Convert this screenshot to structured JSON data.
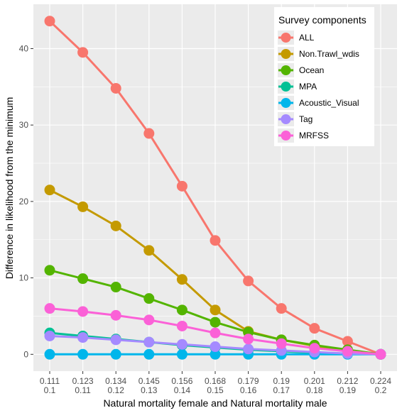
{
  "chart_data": {
    "type": "line",
    "title": "",
    "xlabel": "Natural mortality female and Natural mortality male",
    "ylabel": "Difference in likelihood from the minimum",
    "categories": [
      [
        "0.111",
        "0.1"
      ],
      [
        "0.123",
        "0.11"
      ],
      [
        "0.134",
        "0.12"
      ],
      [
        "0.145",
        "0.13"
      ],
      [
        "0.156",
        "0.14"
      ],
      [
        "0.168",
        "0.15"
      ],
      [
        "0.179",
        "0.16"
      ],
      [
        "0.19",
        "0.17"
      ],
      [
        "0.201",
        "0.18"
      ],
      [
        "0.212",
        "0.19"
      ],
      [
        "0.224",
        "0.2"
      ]
    ],
    "ylim": [
      -2.2,
      45.8
    ],
    "yticks": [
      0,
      10,
      20,
      30,
      40
    ],
    "ytick_labels": [
      "0",
      "10",
      "20",
      "30",
      "40"
    ],
    "grid": true,
    "legend": {
      "title": "Survey components",
      "position": "top-right"
    },
    "series": [
      {
        "name": "ALL",
        "color": "#F8766D",
        "values": [
          43.6,
          39.5,
          34.8,
          28.9,
          22.0,
          14.9,
          9.6,
          6.0,
          3.4,
          1.7,
          0.0
        ]
      },
      {
        "name": "Non.Trawl_wdis",
        "color": "#C49A00",
        "values": [
          21.5,
          19.3,
          16.8,
          13.6,
          9.8,
          5.8,
          3.0,
          1.9,
          1.1,
          0.4,
          0.0
        ]
      },
      {
        "name": "Ocean",
        "color": "#53B400",
        "values": [
          11.0,
          9.9,
          8.8,
          7.3,
          5.8,
          4.2,
          2.9,
          1.9,
          1.2,
          0.6,
          0.0
        ]
      },
      {
        "name": "MPA",
        "color": "#00C094",
        "values": [
          2.8,
          2.4,
          2.0,
          1.6,
          1.2,
          0.9,
          0.6,
          0.4,
          0.2,
          0.1,
          0.0
        ]
      },
      {
        "name": "Acoustic_Visual",
        "color": "#00B6EB",
        "values": [
          0.0,
          0.0,
          0.0,
          0.0,
          0.0,
          0.0,
          0.0,
          0.0,
          0.0,
          0.0,
          0.0
        ]
      },
      {
        "name": "Tag",
        "color": "#A58AFF",
        "values": [
          2.4,
          2.2,
          1.9,
          1.6,
          1.3,
          1.0,
          0.7,
          0.5,
          0.3,
          0.1,
          0.0
        ]
      },
      {
        "name": "MRFSS",
        "color": "#FB61D7",
        "values": [
          6.0,
          5.6,
          5.1,
          4.5,
          3.7,
          2.8,
          2.0,
          1.4,
          0.8,
          0.4,
          0.0
        ]
      }
    ]
  }
}
